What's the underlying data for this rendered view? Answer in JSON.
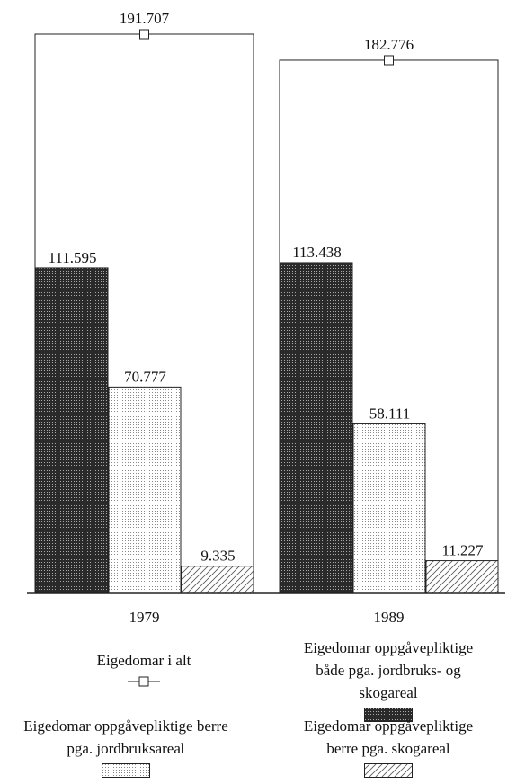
{
  "chart_data": {
    "type": "bar",
    "categories": [
      "1979",
      "1989"
    ],
    "series": [
      {
        "name": "Eigedomar i alt",
        "values": [
          191707,
          182776
        ],
        "value_labels": [
          "191.707",
          "182.776"
        ]
      },
      {
        "name": "Eigedomar oppgåvepliktige både pga. jordbruks- og skogareal",
        "values": [
          111595,
          113438
        ],
        "value_labels": [
          "111.595",
          "113.438"
        ]
      },
      {
        "name": "Eigedomar oppgåvepliktige berre pga. jordbruksareal",
        "values": [
          70777,
          58111
        ],
        "value_labels": [
          "70.777",
          "58.111"
        ]
      },
      {
        "name": "Eigedomar oppgåvepliktige berre pga. skogareal",
        "values": [
          9335,
          11227
        ],
        "value_labels": [
          "9.335",
          "11.227"
        ]
      }
    ]
  }
}
